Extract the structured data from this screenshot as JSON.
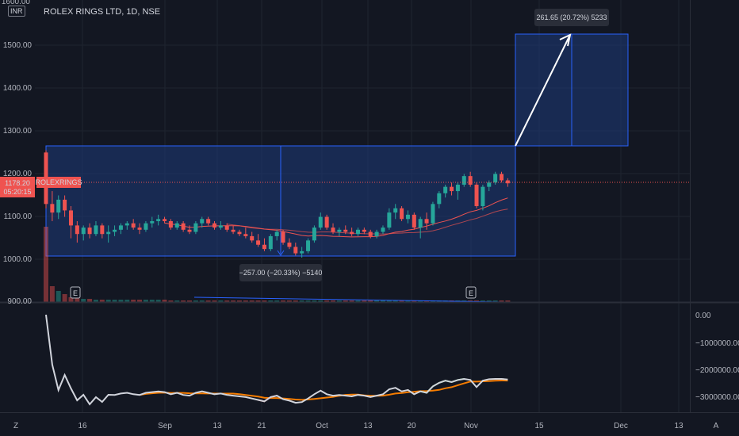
{
  "header": {
    "currency_badge": "INR",
    "symbol_title": "ROLEX RINGS LTD, 1D, NSE"
  },
  "price_axis": {
    "labels": [
      "1600.00",
      "1500.00",
      "1400.00",
      "1300.00",
      "1200.00",
      "1100.00",
      "1000.00",
      "900.00"
    ]
  },
  "indicator_axis": {
    "labels": [
      "0.00",
      "−1000000.00",
      "−2000000.00",
      "−3000000.00"
    ]
  },
  "time_axis": {
    "labels": [
      "16",
      "Sep",
      "13",
      "21",
      "Oct",
      "13",
      "20",
      "Nov",
      "15",
      "Dec",
      "13"
    ]
  },
  "price_tag": {
    "price": "1178.20",
    "countdown": "05:20:15",
    "symbol": "ROLEXRINGS",
    "value": 1178.2
  },
  "measure_up": {
    "label": "261.65 (20.72%) 5233"
  },
  "measure_down": {
    "label": "−257.00 (−20.33%) −5140"
  },
  "earnings_markers": [
    "E",
    "E"
  ],
  "corner_buttons": {
    "left": "Z",
    "right": "A"
  },
  "colors": {
    "background": "#131722",
    "up": "#26a69a",
    "down": "#ef5350",
    "box_fill": "#1e3a7a",
    "box_border": "#2962ff",
    "ma_fast": "#ef5350",
    "ma_slow": "#2962ff",
    "indicator_line": "#d1d4dc",
    "indicator_ma": "#f57c00",
    "indicator_fill_up": "#4caf50",
    "indicator_fill_down": "#ef5350"
  },
  "chart_data": {
    "type": "candlestick",
    "price_range": [
      900,
      1600
    ],
    "candles": [
      [
        1250,
        1255,
        1120,
        1130
      ],
      [
        1130,
        1160,
        1090,
        1110
      ],
      [
        1110,
        1150,
        1095,
        1140
      ],
      [
        1140,
        1150,
        1100,
        1115
      ],
      [
        1115,
        1125,
        1050,
        1080
      ],
      [
        1080,
        1090,
        1040,
        1060
      ],
      [
        1060,
        1080,
        1045,
        1075
      ],
      [
        1075,
        1085,
        1050,
        1060
      ],
      [
        1060,
        1090,
        1055,
        1080
      ],
      [
        1080,
        1085,
        1050,
        1060
      ],
      [
        1060,
        1080,
        1040,
        1065
      ],
      [
        1065,
        1080,
        1055,
        1070
      ],
      [
        1070,
        1085,
        1060,
        1080
      ],
      [
        1080,
        1090,
        1070,
        1085
      ],
      [
        1085,
        1095,
        1070,
        1075
      ],
      [
        1075,
        1085,
        1060,
        1070
      ],
      [
        1070,
        1090,
        1065,
        1085
      ],
      [
        1085,
        1100,
        1075,
        1090
      ],
      [
        1090,
        1105,
        1080,
        1095
      ],
      [
        1095,
        1100,
        1085,
        1090
      ],
      [
        1090,
        1095,
        1070,
        1075
      ],
      [
        1075,
        1090,
        1070,
        1085
      ],
      [
        1085,
        1090,
        1065,
        1070
      ],
      [
        1070,
        1080,
        1060,
        1065
      ],
      [
        1065,
        1090,
        1060,
        1085
      ],
      [
        1085,
        1100,
        1075,
        1095
      ],
      [
        1095,
        1100,
        1080,
        1085
      ],
      [
        1085,
        1090,
        1070,
        1075
      ],
      [
        1075,
        1090,
        1070,
        1080
      ],
      [
        1080,
        1085,
        1065,
        1070
      ],
      [
        1070,
        1080,
        1060,
        1065
      ],
      [
        1065,
        1070,
        1055,
        1060
      ],
      [
        1060,
        1075,
        1050,
        1055
      ],
      [
        1055,
        1065,
        1040,
        1045
      ],
      [
        1045,
        1060,
        1030,
        1035
      ],
      [
        1035,
        1050,
        1020,
        1025
      ],
      [
        1025,
        1060,
        1020,
        1055
      ],
      [
        1055,
        1070,
        1045,
        1065
      ],
      [
        1065,
        1070,
        1035,
        1040
      ],
      [
        1040,
        1050,
        1025,
        1030
      ],
      [
        1030,
        1040,
        1010,
        1015
      ],
      [
        1015,
        1030,
        1005,
        1020
      ],
      [
        1020,
        1050,
        1015,
        1045
      ],
      [
        1045,
        1080,
        1040,
        1075
      ],
      [
        1075,
        1110,
        1070,
        1100
      ],
      [
        1100,
        1105,
        1070,
        1075
      ],
      [
        1075,
        1085,
        1060,
        1065
      ],
      [
        1065,
        1075,
        1055,
        1070
      ],
      [
        1070,
        1080,
        1060,
        1065
      ],
      [
        1065,
        1075,
        1055,
        1060
      ],
      [
        1060,
        1075,
        1055,
        1070
      ],
      [
        1070,
        1075,
        1060,
        1065
      ],
      [
        1065,
        1070,
        1050,
        1055
      ],
      [
        1055,
        1070,
        1050,
        1065
      ],
      [
        1065,
        1080,
        1060,
        1075
      ],
      [
        1075,
        1120,
        1070,
        1110
      ],
      [
        1110,
        1130,
        1095,
        1120
      ],
      [
        1120,
        1125,
        1090,
        1095
      ],
      [
        1095,
        1115,
        1085,
        1105
      ],
      [
        1105,
        1110,
        1070,
        1075
      ],
      [
        1075,
        1100,
        1050,
        1095
      ],
      [
        1095,
        1110,
        1070,
        1085
      ],
      [
        1085,
        1135,
        1080,
        1130
      ],
      [
        1130,
        1160,
        1120,
        1155
      ],
      [
        1155,
        1175,
        1145,
        1170
      ],
      [
        1170,
        1180,
        1150,
        1160
      ],
      [
        1160,
        1180,
        1140,
        1175
      ],
      [
        1175,
        1200,
        1170,
        1195
      ],
      [
        1195,
        1205,
        1170,
        1175
      ],
      [
        1175,
        1180,
        1120,
        1125
      ],
      [
        1125,
        1175,
        1115,
        1170
      ],
      [
        1170,
        1185,
        1160,
        1180
      ],
      [
        1180,
        1205,
        1175,
        1200
      ],
      [
        1200,
        1205,
        1180,
        1185
      ],
      [
        1185,
        1190,
        1170,
        1178.2
      ]
    ]
  }
}
